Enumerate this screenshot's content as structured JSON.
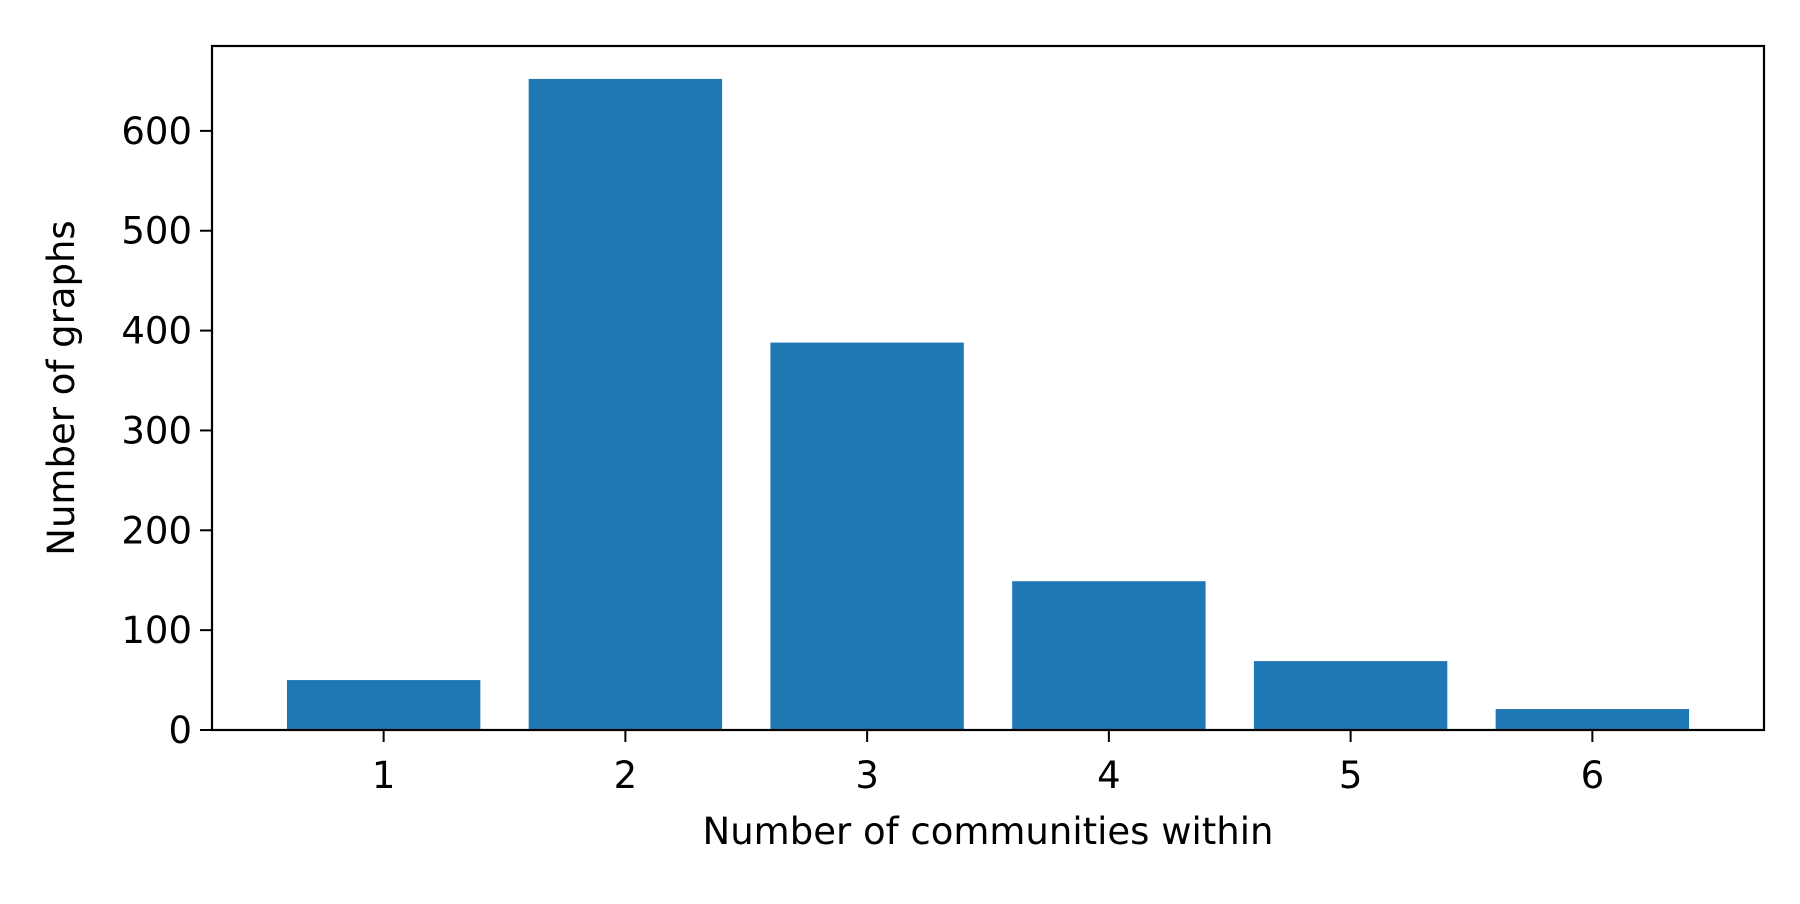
{
  "chart_data": {
    "type": "bar",
    "categories": [
      "1",
      "2",
      "3",
      "4",
      "5",
      "6"
    ],
    "values": [
      50,
      652,
      388,
      149,
      69,
      21
    ],
    "title": "",
    "xlabel": "Number of communities within",
    "ylabel": "Number of graphs",
    "ylim": [
      0,
      685
    ],
    "yticks": [
      0,
      100,
      200,
      300,
      400,
      500,
      600
    ],
    "grid": false,
    "legend": "none",
    "bar_color": "#1f77b4"
  }
}
